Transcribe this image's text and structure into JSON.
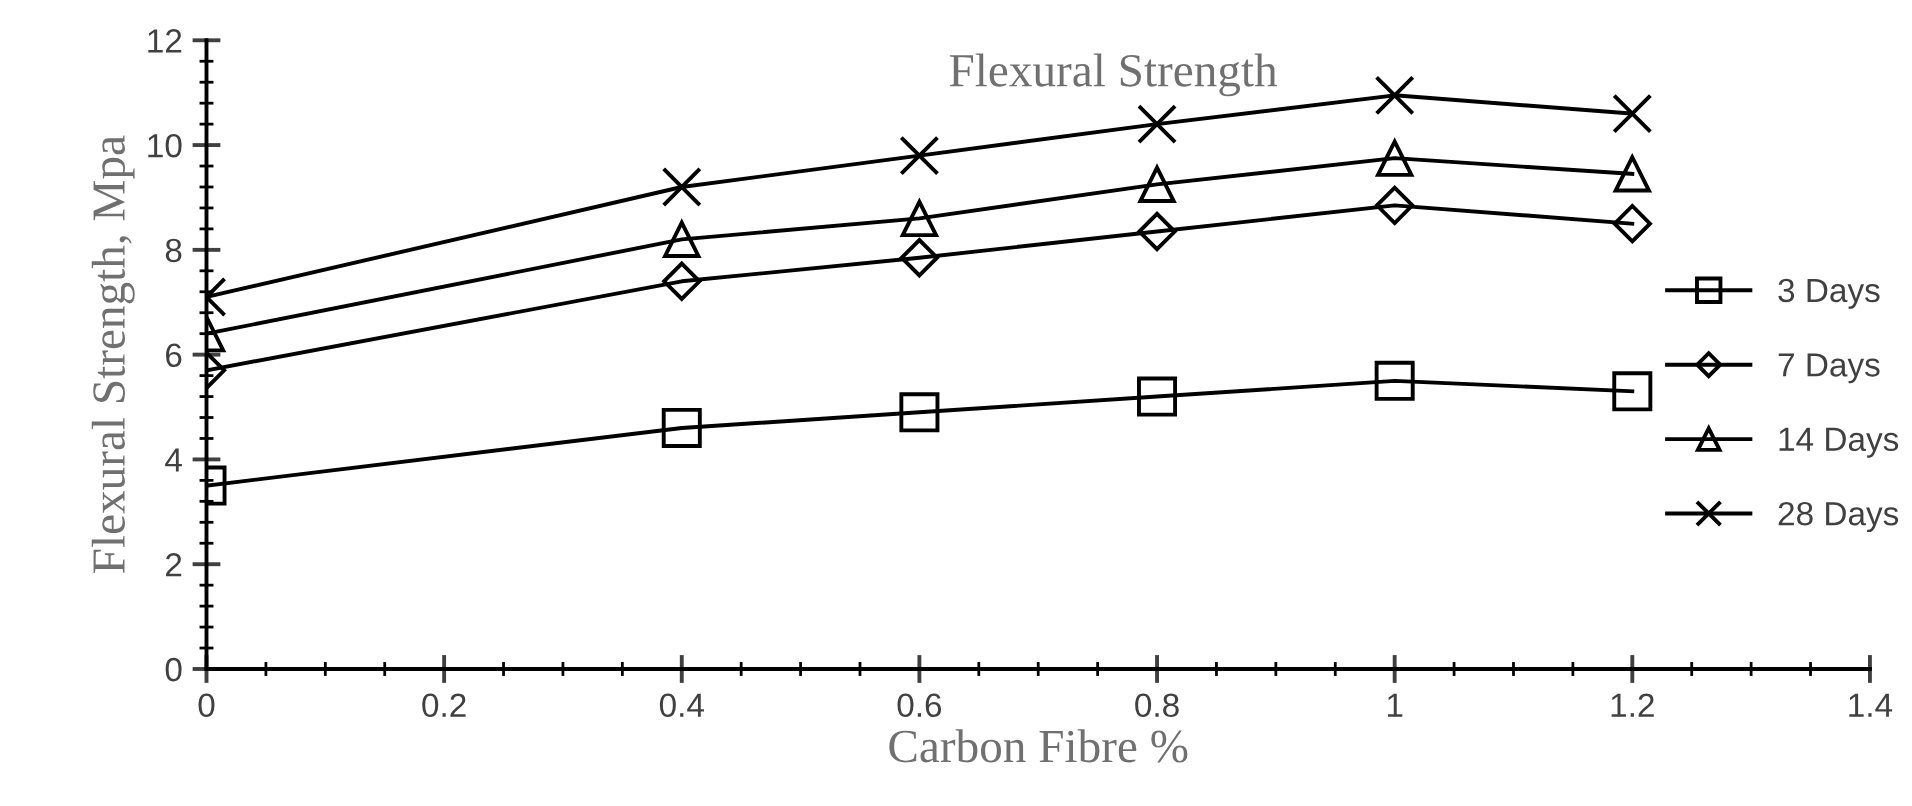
{
  "chart_data": {
    "type": "line",
    "title": "Flexural Strength",
    "xlabel": "Carbon Fibre %",
    "ylabel": "Flexural Strength, Mpa",
    "x": [
      0,
      0.4,
      0.6,
      0.8,
      1,
      1.2
    ],
    "series": [
      {
        "name": "3 Days",
        "color": "#000000",
        "marker": "square",
        "values": [
          3.5,
          4.6,
          4.9,
          5.2,
          5.5,
          5.3
        ]
      },
      {
        "name": "7 Days",
        "color": "#000000",
        "marker": "diamond",
        "values": [
          5.7,
          7.4,
          7.85,
          8.35,
          8.85,
          8.5
        ]
      },
      {
        "name": "14 Days",
        "color": "#000000",
        "marker": "triangle",
        "values": [
          6.4,
          8.2,
          8.6,
          9.25,
          9.75,
          9.45
        ]
      },
      {
        "name": "28 Days",
        "color": "#000000",
        "marker": "cross",
        "values": [
          7.1,
          9.2,
          9.8,
          10.4,
          10.95,
          10.6
        ]
      }
    ],
    "xlim": [
      0,
      1.4
    ],
    "xticks": [
      0,
      0.2,
      0.4,
      0.6,
      0.8,
      1,
      1.2,
      1.4
    ],
    "ylim": [
      0,
      12
    ],
    "yticks": [
      0,
      2,
      4,
      6,
      8,
      10,
      12
    ],
    "grid": false,
    "legend": "right",
    "line_style": "solid"
  }
}
